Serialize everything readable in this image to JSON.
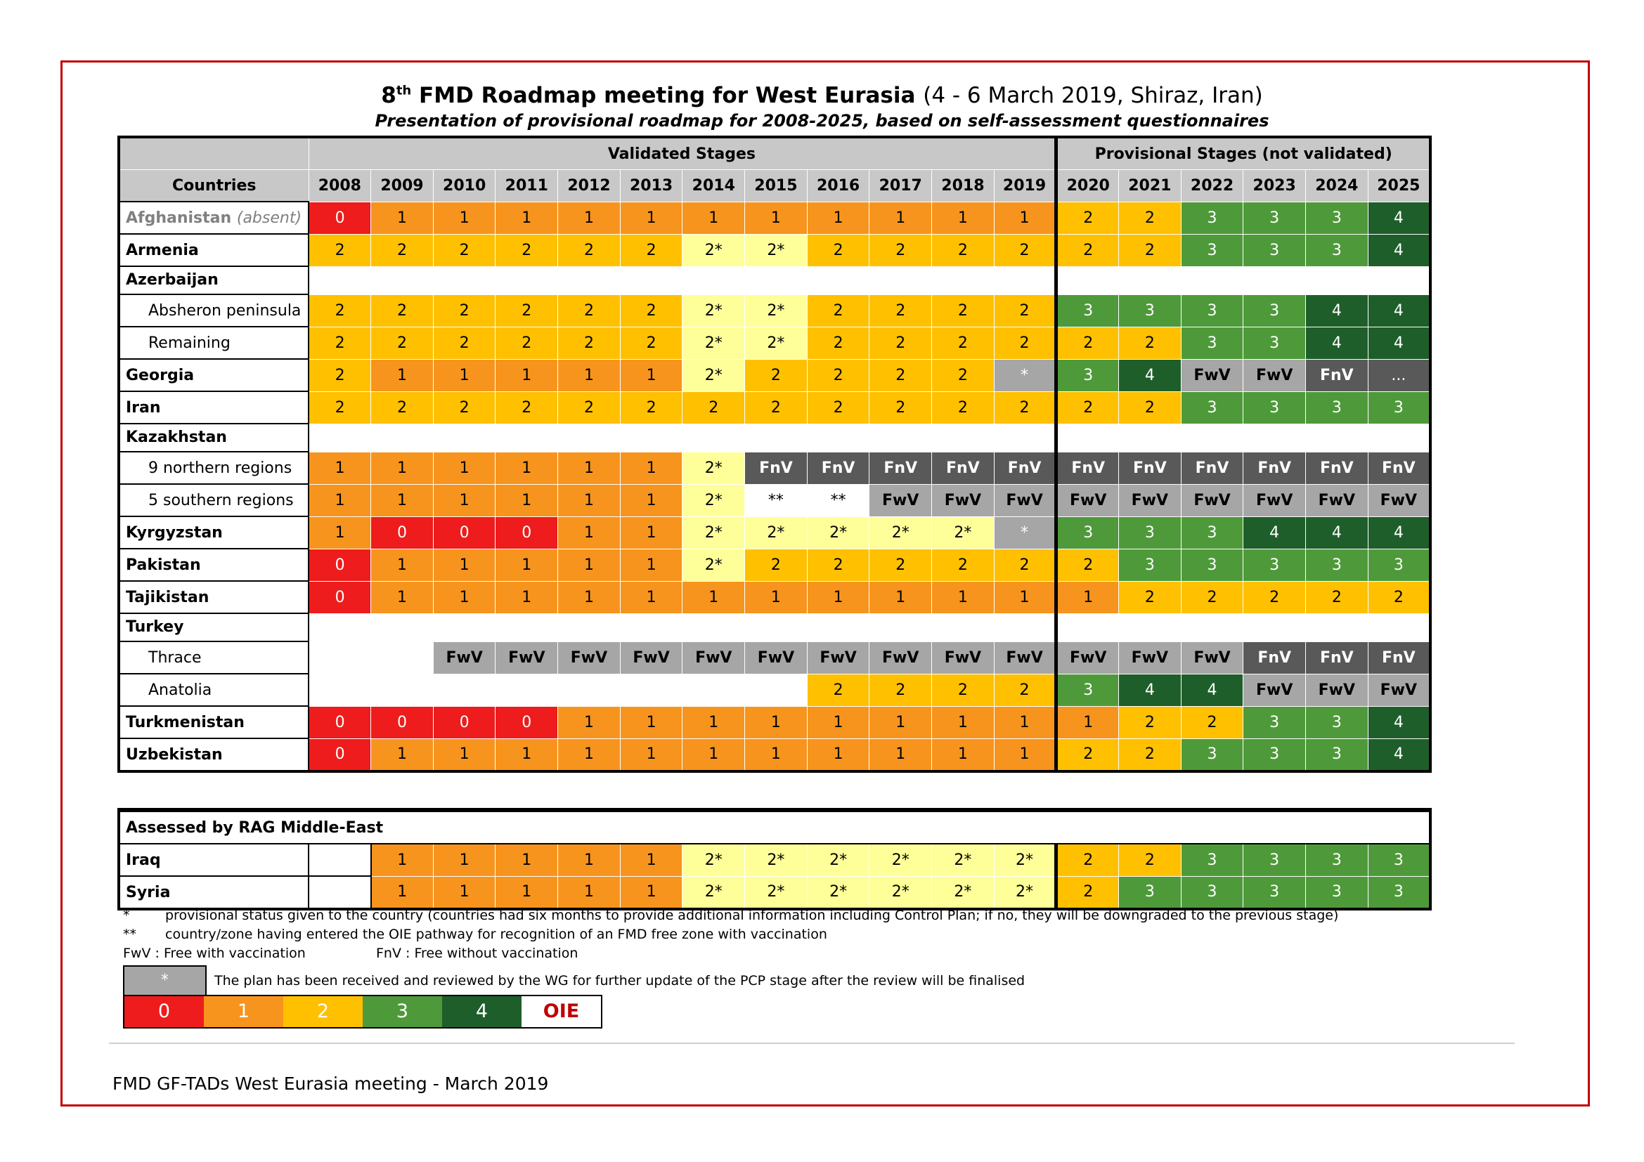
{
  "title": {
    "main": "FMD Roadmap meeting for West Eurasia",
    "ordinal": "8",
    "ordinal_suffix": "th",
    "location": "(4 - 6 March 2019, Shiraz, Iran)",
    "subtitle": "Presentation of provisional roadmap for 2008-2025, based on self-assessment questionnaires"
  },
  "table": {
    "countries_label": "Countries",
    "validated_label": "Validated Stages",
    "provisional_label": "Provisional Stages (not validated)",
    "years": [
      "2008",
      "2009",
      "2010",
      "2011",
      "2012",
      "2013",
      "2014",
      "2015",
      "2016",
      "2017",
      "2018",
      "2019",
      "2020",
      "2021",
      "2022",
      "2023",
      "2024",
      "2025"
    ],
    "rows": [
      {
        "name": "Afghanistan",
        "note": "(absent)",
        "values": [
          "0",
          "1",
          "1",
          "1",
          "1",
          "1",
          "1",
          "1",
          "1",
          "1",
          "1",
          "1",
          "2",
          "2",
          "3",
          "3",
          "3",
          "4"
        ]
      },
      {
        "name": "Armenia",
        "values": [
          "2",
          "2",
          "2",
          "2",
          "2",
          "2",
          "2*",
          "2*",
          "2",
          "2",
          "2",
          "2",
          "2",
          "2",
          "3",
          "3",
          "3",
          "4"
        ]
      },
      {
        "name": "Azerbaijan",
        "group": true
      },
      {
        "name": "Absheron peninsula",
        "sub": true,
        "values": [
          "2",
          "2",
          "2",
          "2",
          "2",
          "2",
          "2*",
          "2*",
          "2",
          "2",
          "2",
          "2",
          "3",
          "3",
          "3",
          "3",
          "4",
          "4"
        ]
      },
      {
        "name": "Remaining",
        "sub": true,
        "values": [
          "2",
          "2",
          "2",
          "2",
          "2",
          "2",
          "2*",
          "2*",
          "2",
          "2",
          "2",
          "2",
          "2",
          "2",
          "3",
          "3",
          "4",
          "4"
        ]
      },
      {
        "name": "Georgia",
        "values": [
          "2",
          "1",
          "1",
          "1",
          "1",
          "1",
          "2*",
          "2",
          "2",
          "2",
          "2",
          "*",
          "3",
          "4",
          "FwV",
          "FwV",
          "FnV",
          "..."
        ]
      },
      {
        "name": "Iran",
        "values": [
          "2",
          "2",
          "2",
          "2",
          "2",
          "2",
          "2",
          "2",
          "2",
          "2",
          "2",
          "2",
          "2",
          "2",
          "3",
          "3",
          "3",
          "3"
        ]
      },
      {
        "name": "Kazakhstan",
        "group": true
      },
      {
        "name": "9 northern regions",
        "sub": true,
        "values": [
          "1",
          "1",
          "1",
          "1",
          "1",
          "1",
          "2*",
          "FnV",
          "FnV",
          "FnV",
          "FnV",
          "FnV",
          "FnV",
          "FnV",
          "FnV",
          "FnV",
          "FnV",
          "FnV"
        ]
      },
      {
        "name": "5 southern regions",
        "sub": true,
        "values": [
          "1",
          "1",
          "1",
          "1",
          "1",
          "1",
          "2*",
          "**",
          "**",
          "FwV",
          "FwV",
          "FwV",
          "FwV",
          "FwV",
          "FwV",
          "FwV",
          "FwV",
          "FwV"
        ]
      },
      {
        "name": "Kyrgyzstan",
        "values": [
          "1",
          "0",
          "0",
          "0",
          "1",
          "1",
          "2*",
          "2*",
          "2*",
          "2*",
          "2*",
          "*",
          "3",
          "3",
          "3",
          "4",
          "4",
          "4"
        ]
      },
      {
        "name": "Pakistan",
        "values": [
          "0",
          "1",
          "1",
          "1",
          "1",
          "1",
          "2*",
          "2",
          "2",
          "2",
          "2",
          "2",
          "2",
          "3",
          "3",
          "3",
          "3",
          "3"
        ]
      },
      {
        "name": "Tajikistan",
        "values": [
          "0",
          "1",
          "1",
          "1",
          "1",
          "1",
          "1",
          "1",
          "1",
          "1",
          "1",
          "1",
          "1",
          "2",
          "2",
          "2",
          "2",
          "2"
        ]
      },
      {
        "name": "Turkey",
        "group": true
      },
      {
        "name": "Thrace",
        "sub": true,
        "values": [
          "",
          "",
          "FwV",
          "FwV",
          "FwV",
          "FwV",
          "FwV",
          "FwV",
          "FwV",
          "FwV",
          "FwV",
          "FwV",
          "FwV",
          "FwV",
          "FwV",
          "FnV",
          "FnV",
          "FnV"
        ]
      },
      {
        "name": "Anatolia",
        "sub": true,
        "values": [
          "",
          "",
          "",
          "",
          "",
          "",
          "",
          "",
          "2",
          "2",
          "2",
          "2",
          "3",
          "4",
          "4",
          "FwV",
          "FwV",
          "FwV"
        ]
      },
      {
        "name": "Turkmenistan",
        "values": [
          "0",
          "0",
          "0",
          "0",
          "1",
          "1",
          "1",
          "1",
          "1",
          "1",
          "1",
          "1",
          "1",
          "2",
          "2",
          "3",
          "3",
          "4"
        ]
      },
      {
        "name": "Uzbekistan",
        "values": [
          "0",
          "1",
          "1",
          "1",
          "1",
          "1",
          "1",
          "1",
          "1",
          "1",
          "1",
          "1",
          "2",
          "2",
          "3",
          "3",
          "3",
          "4"
        ]
      }
    ]
  },
  "rag": {
    "label": "Assessed by RAG Middle-East",
    "rows": [
      {
        "name": "Iraq",
        "values": [
          "",
          "1",
          "1",
          "1",
          "1",
          "1",
          "2*",
          "2*",
          "2*",
          "2*",
          "2*",
          "2*",
          "2",
          "2",
          "3",
          "3",
          "3",
          "3"
        ]
      },
      {
        "name": "Syria",
        "values": [
          "",
          "1",
          "1",
          "1",
          "1",
          "1",
          "2*",
          "2*",
          "2*",
          "2*",
          "2*",
          "2*",
          "2",
          "3",
          "3",
          "3",
          "3",
          "3"
        ]
      }
    ]
  },
  "notes": {
    "star_mark": "*",
    "star_text": "provisional status given to the country (countries had six months to provide additional information including Control Plan; if no, they will be downgraded to the previous stage)",
    "dstar_mark": "**",
    "dstar_text": "country/zone having entered the OIE pathway for recognition of an FMD free zone with vaccination",
    "fwv": "FwV : Free with vaccination",
    "fnv": "FnV : Free without vaccination"
  },
  "legend": {
    "star_box": "*",
    "star_text": "The plan has been received and reviewed by the WG for further update of the PCP stage after the review will be finalised",
    "stages": [
      "0",
      "1",
      "2",
      "3",
      "4"
    ],
    "oie": "OIE",
    "colors": {
      "0": "#ee1c1c",
      "1": "#f7941d",
      "2": "#ffc000",
      "2*": "#ffff99",
      "3": "#4e9a3a",
      "4": "#1e5e2a",
      "FwV": "#a6a6a6",
      "FnV": "#595959"
    }
  },
  "footer": "FMD GF-TADs West Eurasia meeting - March 2019"
}
